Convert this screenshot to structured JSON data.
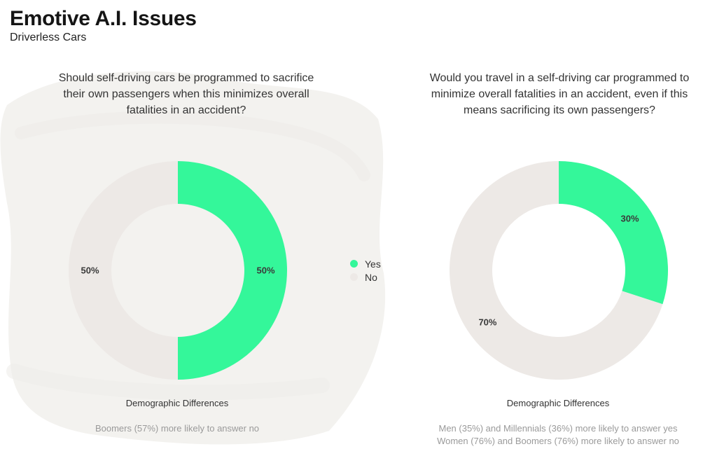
{
  "title": "Emotive A.I. Issues",
  "subtitle": "Driverless Cars",
  "colors": {
    "yes": "#34F79A",
    "no": "#EDE9E6",
    "brush": "#F3F2EF"
  },
  "legend": {
    "yes_label": "Yes",
    "no_label": "No"
  },
  "chart_data": [
    {
      "type": "pie",
      "title": "Should self-driving cars be programmed to sacrifice their own passengers when this minimizes overall fatalities in an accident?",
      "categories": [
        "Yes",
        "No"
      ],
      "values": [
        50,
        50
      ],
      "labels": [
        "50%",
        "50%"
      ],
      "demographic_heading": "Demographic Differences",
      "demographic_notes": [
        "Boomers (57%) more likely to answer no"
      ]
    },
    {
      "type": "pie",
      "title": "Would you travel in a self-driving car programmed to minimize overall fatalities in an accident, even if this means sacrificing its own passengers?",
      "categories": [
        "Yes",
        "No"
      ],
      "values": [
        30,
        70
      ],
      "labels": [
        "30%",
        "70%"
      ],
      "demographic_heading": "Demographic Differences",
      "demographic_notes": [
        "Men (35%) and Millennials (36%) more likely to answer yes",
        "Women (76%) and Boomers (76%) more likely to answer no"
      ]
    }
  ]
}
